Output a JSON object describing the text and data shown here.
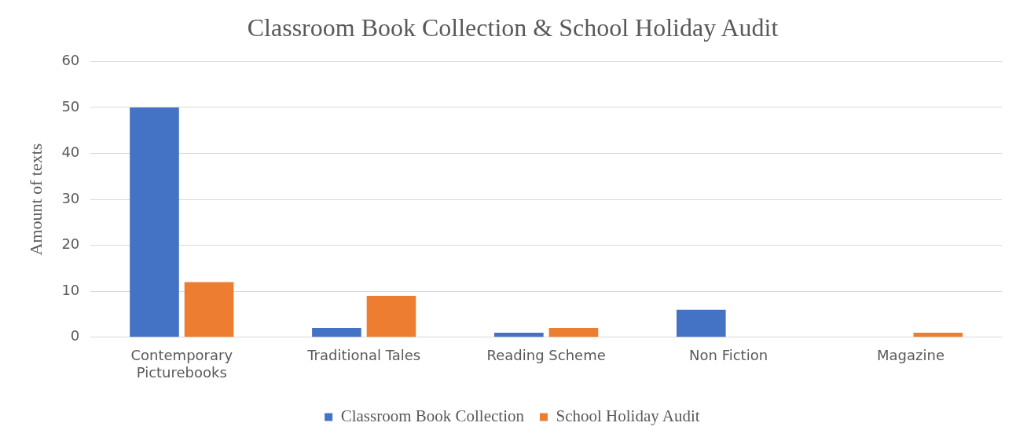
{
  "chart_data": {
    "type": "bar",
    "title": "Classroom Book Collection & School Holiday Audit",
    "ylabel": "Amount of texts",
    "categories": [
      "Contemporary Picturebooks",
      "Traditional Tales",
      "Reading Scheme",
      "Non Fiction",
      "Magazine"
    ],
    "series": [
      {
        "name": "Classroom Book Collection",
        "color": "#4472c4",
        "values": [
          50,
          2,
          1,
          6,
          0
        ]
      },
      {
        "name": "School Holiday Audit",
        "color": "#ed7d31",
        "values": [
          12,
          9,
          2,
          0,
          1
        ]
      }
    ],
    "ylim": [
      0,
      60
    ],
    "yticks": [
      0,
      10,
      20,
      30,
      40,
      50,
      60
    ],
    "grid": "y",
    "legend": "bottom"
  }
}
